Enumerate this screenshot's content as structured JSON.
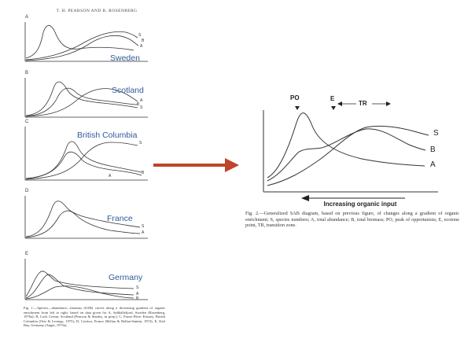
{
  "left_figure": {
    "header": "T. H. PEARSON AND R. ROSENBERG",
    "panels": [
      {
        "letter": "A",
        "region": "Sweden",
        "curve_labels": [
          "S",
          "B",
          "A"
        ]
      },
      {
        "letter": "B",
        "region": "Scotland",
        "curve_labels": [
          "A",
          "B",
          "S"
        ]
      },
      {
        "letter": "C",
        "region": "British Columbia",
        "curve_labels": [
          "S",
          "A",
          "B"
        ]
      },
      {
        "letter": "D",
        "region": "France",
        "curve_labels": [
          "S",
          "A"
        ]
      },
      {
        "letter": "E",
        "region": "Germany",
        "curve_labels": [
          "S",
          "A",
          "B"
        ]
      }
    ],
    "caption": "Fig. 1.—Species—abundance—biomass (SAB) curves along a decreasing gradient of organic enrichment from left to right: based on data given for A, Saltkällefjord, Sweden (Rosenberg, 1976a); B, Loch Creran, Scotland (Pearson & Stanley, in prep.); C, Fraser River Estuary, British Columbia (Otte & Levings, 1975); D, Cortiou, France (Bellan & Bellan-Santini, 1972); E, Kiel Bay, Germany (Anger, 1975a)."
  },
  "right_figure": {
    "top_labels": {
      "po": "PO",
      "e": "E",
      "tr": "TR"
    },
    "curve_labels": [
      "S",
      "B",
      "A"
    ],
    "axis_label": "Increasing organic input",
    "caption": "Fig. 2.—Generalized SAB diagram, based on previous figure, of changes along a gradient of organic enrichment; S, species numbers; A, total abundance; B, total biomass; PO, peak of opportunists; E, ecotone point, TR, transition zone."
  },
  "colors": {
    "arrow": "#c0432a",
    "region_label": "#2f5a9c",
    "ink": "#222222"
  }
}
